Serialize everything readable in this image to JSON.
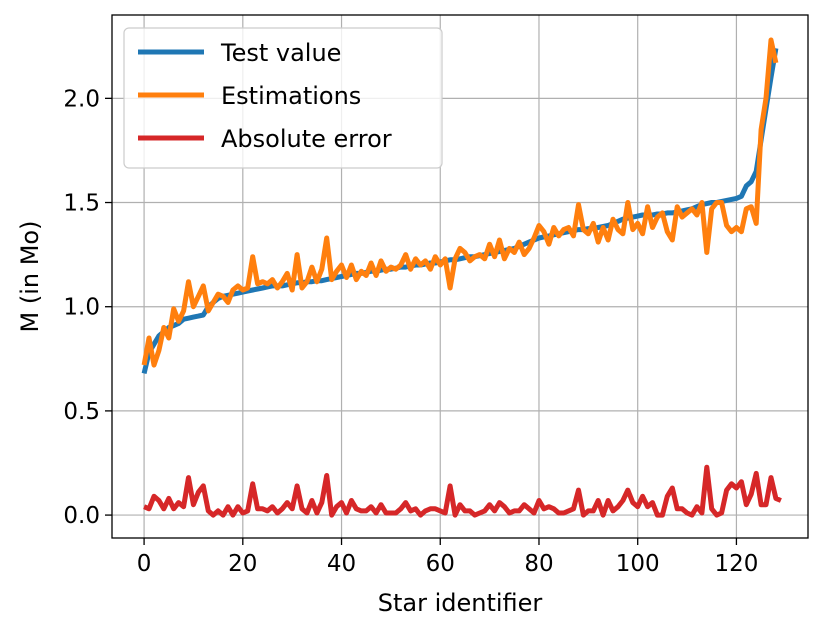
{
  "chart_data": {
    "type": "line",
    "title": "",
    "xlabel": "Star identifier",
    "ylabel": "M (in Mo)",
    "xlim": [
      -6.5,
      134.5
    ],
    "ylim": [
      -0.11,
      2.4
    ],
    "xticks": [
      0,
      20,
      40,
      60,
      80,
      100,
      120
    ],
    "yticks": [
      0.0,
      0.5,
      1.0,
      1.5,
      2.0
    ],
    "xtick_labels": [
      "0",
      "20",
      "40",
      "60",
      "80",
      "100",
      "120"
    ],
    "ytick_labels": [
      "0.0",
      "0.5",
      "1.0",
      "1.5",
      "2.0"
    ],
    "grid": true,
    "legend_position": "top-left",
    "colors": [
      "#1f77b4",
      "#ff7f0e",
      "#d62728"
    ],
    "series": [
      {
        "name": "Test value",
        "color": "#1f77b4",
        "values": [
          0.68,
          0.78,
          0.82,
          0.86,
          0.88,
          0.9,
          0.91,
          0.92,
          0.94,
          0.945,
          0.95,
          0.955,
          0.96,
          1.0,
          1.02,
          1.04,
          1.05,
          1.055,
          1.06,
          1.065,
          1.07,
          1.075,
          1.08,
          1.085,
          1.09,
          1.095,
          1.1,
          1.1,
          1.1,
          1.105,
          1.11,
          1.115,
          1.115,
          1.12,
          1.12,
          1.125,
          1.125,
          1.13,
          1.135,
          1.14,
          1.145,
          1.15,
          1.155,
          1.16,
          1.16,
          1.165,
          1.17,
          1.17,
          1.175,
          1.18,
          1.18,
          1.185,
          1.19,
          1.19,
          1.195,
          1.2,
          1.2,
          1.205,
          1.21,
          1.21,
          1.215,
          1.22,
          1.225,
          1.225,
          1.23,
          1.235,
          1.24,
          1.24,
          1.245,
          1.25,
          1.255,
          1.26,
          1.265,
          1.27,
          1.275,
          1.28,
          1.29,
          1.3,
          1.31,
          1.32,
          1.33,
          1.335,
          1.34,
          1.345,
          1.35,
          1.355,
          1.36,
          1.365,
          1.37,
          1.37,
          1.375,
          1.375,
          1.38,
          1.385,
          1.39,
          1.4,
          1.41,
          1.42,
          1.425,
          1.43,
          1.435,
          1.44,
          1.44,
          1.44,
          1.445,
          1.445,
          1.45,
          1.45,
          1.455,
          1.46,
          1.465,
          1.47,
          1.48,
          1.49,
          1.495,
          1.5,
          1.5,
          1.505,
          1.51,
          1.515,
          1.52,
          1.53,
          1.58,
          1.6,
          1.65,
          1.8,
          1.95,
          2.1,
          2.24
        ]
      },
      {
        "name": "Estimations",
        "color": "#ff7f0e",
        "values": [
          0.72,
          0.85,
          0.72,
          0.79,
          0.9,
          0.85,
          0.99,
          0.93,
          0.98,
          1.12,
          1.0,
          1.05,
          1.1,
          0.98,
          1.02,
          1.06,
          1.05,
          1.02,
          1.08,
          1.1,
          1.08,
          1.09,
          1.24,
          1.11,
          1.12,
          1.11,
          1.13,
          1.09,
          1.12,
          1.16,
          1.08,
          1.25,
          1.09,
          1.12,
          1.19,
          1.12,
          1.18,
          1.33,
          1.13,
          1.17,
          1.2,
          1.14,
          1.2,
          1.13,
          1.17,
          1.15,
          1.21,
          1.15,
          1.22,
          1.17,
          1.19,
          1.18,
          1.2,
          1.25,
          1.18,
          1.23,
          1.2,
          1.22,
          1.18,
          1.24,
          1.2,
          1.23,
          1.09,
          1.23,
          1.28,
          1.26,
          1.22,
          1.24,
          1.25,
          1.23,
          1.3,
          1.24,
          1.32,
          1.23,
          1.28,
          1.26,
          1.31,
          1.25,
          1.28,
          1.33,
          1.39,
          1.36,
          1.3,
          1.38,
          1.34,
          1.37,
          1.38,
          1.34,
          1.49,
          1.37,
          1.35,
          1.4,
          1.31,
          1.38,
          1.32,
          1.42,
          1.37,
          1.35,
          1.5,
          1.37,
          1.4,
          1.35,
          1.48,
          1.38,
          1.43,
          1.45,
          1.36,
          1.32,
          1.48,
          1.43,
          1.45,
          1.47,
          1.44,
          1.5,
          1.26,
          1.47,
          1.5,
          1.5,
          1.39,
          1.36,
          1.38,
          1.36,
          1.47,
          1.48,
          1.4,
          1.85,
          2.0,
          2.28,
          2.17
        ]
      },
      {
        "name": "Absolute error",
        "color": "#d62728",
        "values": [
          0.04,
          0.03,
          0.09,
          0.07,
          0.03,
          0.08,
          0.03,
          0.06,
          0.04,
          0.18,
          0.05,
          0.11,
          0.14,
          0.02,
          0.0,
          0.02,
          0.0,
          0.04,
          0.0,
          0.04,
          0.01,
          0.02,
          0.15,
          0.03,
          0.03,
          0.02,
          0.04,
          0.01,
          0.03,
          0.06,
          0.03,
          0.14,
          0.03,
          0.01,
          0.07,
          0.01,
          0.06,
          0.19,
          0.0,
          0.04,
          0.06,
          0.01,
          0.07,
          0.03,
          0.02,
          0.02,
          0.04,
          0.01,
          0.05,
          0.01,
          0.01,
          0.01,
          0.03,
          0.06,
          0.02,
          0.03,
          0.0,
          0.02,
          0.03,
          0.03,
          0.02,
          0.01,
          0.14,
          0.0,
          0.05,
          0.02,
          0.02,
          0.0,
          0.01,
          0.02,
          0.05,
          0.02,
          0.06,
          0.04,
          0.01,
          0.02,
          0.02,
          0.05,
          0.03,
          0.01,
          0.07,
          0.03,
          0.04,
          0.03,
          0.01,
          0.01,
          0.02,
          0.03,
          0.12,
          0.0,
          0.02,
          0.02,
          0.07,
          0.0,
          0.07,
          0.02,
          0.04,
          0.07,
          0.12,
          0.06,
          0.04,
          0.09,
          0.04,
          0.06,
          0.0,
          0.0,
          0.09,
          0.13,
          0.03,
          0.03,
          0.01,
          0.0,
          0.04,
          0.01,
          0.23,
          0.03,
          0.0,
          0.01,
          0.12,
          0.15,
          0.13,
          0.16,
          0.05,
          0.1,
          0.2,
          0.05,
          0.05,
          0.18,
          0.08,
          0.07
        ]
      }
    ]
  }
}
